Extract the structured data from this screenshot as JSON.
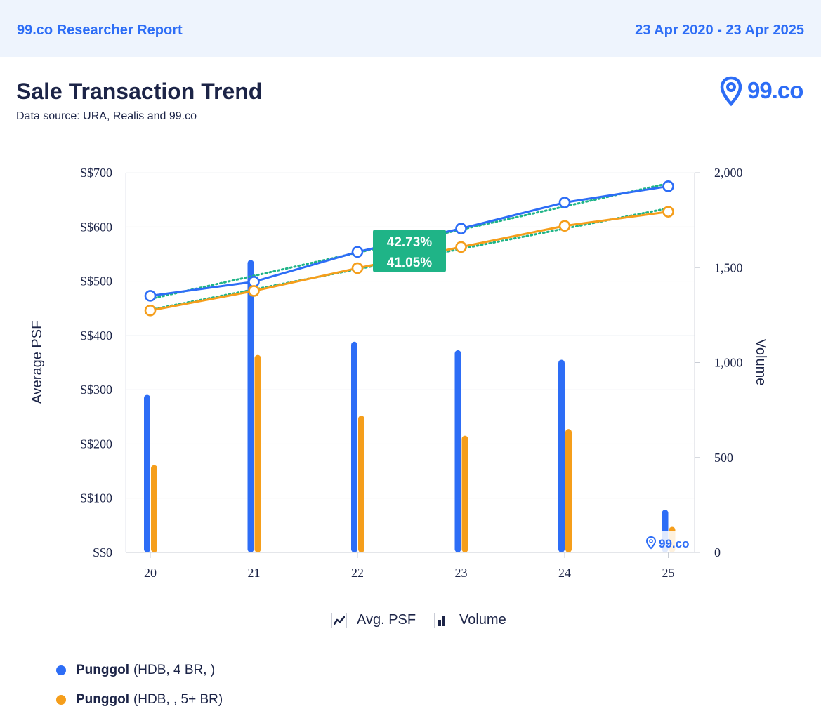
{
  "header": {
    "report_label": "99.co Researcher Report",
    "date_range": "23 Apr 2020 - 23 Apr 2025"
  },
  "page": {
    "title": "Sale Transaction Trend",
    "subtitle": "Data source: URA, Realis and 99.co",
    "logo_text": "99.co",
    "watermark_text": "99.co"
  },
  "legend": {
    "line_label": "Avg. PSF",
    "bar_label": "Volume",
    "line_icon": "line-chart-icon",
    "bar_icon": "bar-chart-icon"
  },
  "series_list": [
    {
      "name": "Punggol",
      "detail": "(HDB, 4 BR, )",
      "color": "#2d6df6"
    },
    {
      "name": "Punggol",
      "detail": "(HDB, , 5+ BR)",
      "color": "#f59e1b"
    }
  ],
  "chart_data": {
    "type": "bar+line",
    "categories": [
      "20",
      "21",
      "22",
      "23",
      "24",
      "25"
    ],
    "ylabel": "Average PSF",
    "y2label": "Volume",
    "ylim": [
      0,
      700
    ],
    "y2lim": [
      0,
      2000
    ],
    "yticks": [
      "S$0",
      "S$100",
      "S$200",
      "S$300",
      "S$400",
      "S$500",
      "S$600",
      "S$700"
    ],
    "y2ticks": [
      "0",
      "500",
      "1,000",
      "1,500",
      "2,000"
    ],
    "grid": true,
    "series": [
      {
        "name": "Punggol (HDB, 4 BR, )",
        "color": "#2d6df6",
        "psf": [
          473,
          499,
          554,
          597,
          645,
          675
        ],
        "volume": [
          830,
          1540,
          1110,
          1065,
          1015,
          225
        ]
      },
      {
        "name": "Punggol (HDB, , 5+ BR)",
        "color": "#f59e1b",
        "psf": [
          446,
          482,
          524,
          563,
          602,
          628
        ],
        "volume": [
          460,
          1040,
          720,
          615,
          650,
          135
        ]
      }
    ],
    "growth_labels": [
      "42.73%",
      "41.05%"
    ],
    "trendline_color": "#1fb487",
    "badge_color": "#1fb487"
  }
}
